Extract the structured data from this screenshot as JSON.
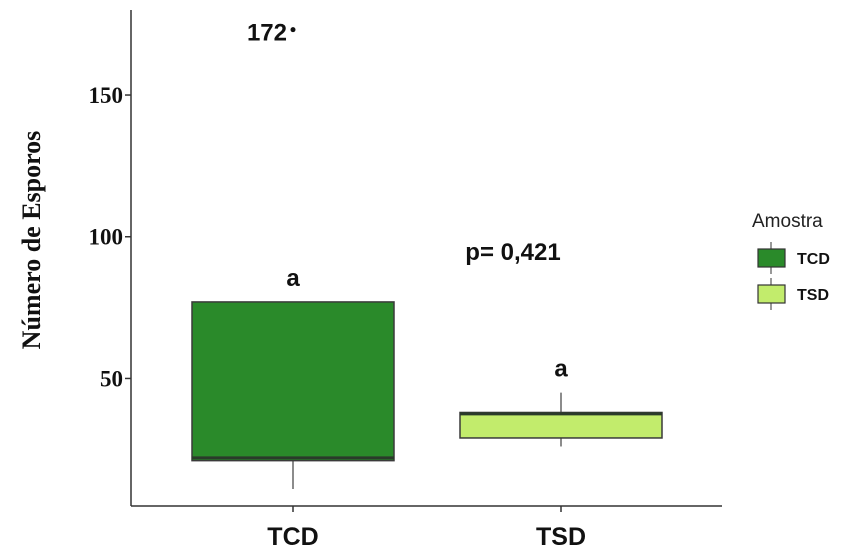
{
  "chart_data": {
    "type": "box",
    "ylabel": "Número de Esporos",
    "xlabel": "",
    "ylim": [
      5,
      180
    ],
    "yticks": [
      50,
      100,
      150
    ],
    "categories": [
      "TCD",
      "TSD"
    ],
    "boxes": [
      {
        "category": "TCD",
        "min": 11,
        "q1": 21,
        "median": 22,
        "q3": 77,
        "max": 77,
        "color": "#2a8a2a",
        "label": "a"
      },
      {
        "category": "TSD",
        "min": 26,
        "q1": 29,
        "median": 37.5,
        "q3": 38,
        "max": 45,
        "color": "#c2ec6c",
        "label": "a"
      }
    ],
    "outliers": [
      {
        "category": "TCD",
        "value": 172,
        "label": "172"
      }
    ],
    "annotation": "p= 0,421",
    "legend": {
      "title": "Amostra",
      "position": "right",
      "items": [
        {
          "label": "TCD",
          "color": "#2a8a2a"
        },
        {
          "label": "TSD",
          "color": "#c2ec6c"
        }
      ]
    }
  }
}
